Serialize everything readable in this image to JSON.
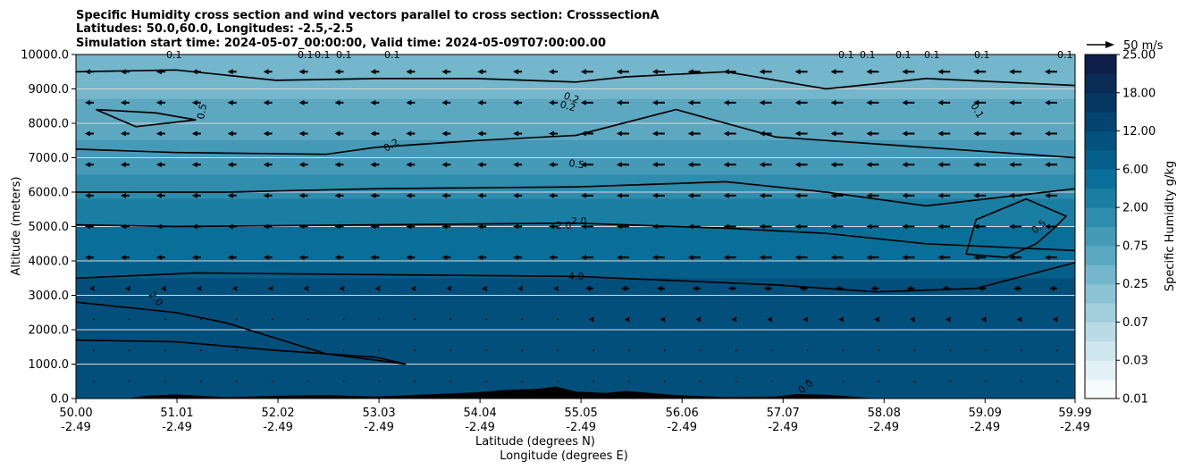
{
  "chart_data": {
    "type": "contourf_cross_section",
    "title_lines": [
      "Specific Humidity cross section and wind vectors parallel to cross section: CrosssectionA",
      "Latitudes: 50.0,60.0, Longitudes: -2.5,-2.5",
      "Simulation start time: 2024-05-07_00:00:00, Valid time: 2024-05-09T07:00:00.00"
    ],
    "ylabel": "Altitude (meters)",
    "xlabel_lines": [
      "Latitude (degrees N)",
      "Longitude (degrees E)"
    ],
    "ylim": [
      0,
      10000
    ],
    "y_ticks": [
      "0.0",
      "1000.0",
      "2000.0",
      "3000.0",
      "4000.0",
      "5000.0",
      "6000.0",
      "7000.0",
      "8000.0",
      "9000.0",
      "10000.0"
    ],
    "x_range": [
      50.0,
      59.99
    ],
    "x_ticks": [
      {
        "lat": "50.00",
        "lon": "-2.49"
      },
      {
        "lat": "51.01",
        "lon": "-2.49"
      },
      {
        "lat": "52.02",
        "lon": "-2.49"
      },
      {
        "lat": "53.03",
        "lon": "-2.49"
      },
      {
        "lat": "54.04",
        "lon": "-2.49"
      },
      {
        "lat": "55.05",
        "lon": "-2.49"
      },
      {
        "lat": "56.06",
        "lon": "-2.49"
      },
      {
        "lat": "57.07",
        "lon": "-2.49"
      },
      {
        "lat": "58.08",
        "lon": "-2.49"
      },
      {
        "lat": "59.09",
        "lon": "-2.49"
      },
      {
        "lat": "59.99",
        "lon": "-2.49"
      }
    ],
    "grid": "horizontal",
    "colorbar": {
      "label": "Specific Humidity g/kg",
      "levels": [
        "0.01",
        "0.03",
        "0.07",
        "0.25",
        "0.75",
        "2.00",
        "6.00",
        "12.00",
        "18.00",
        "25.00"
      ],
      "colors": [
        "#f7fbfd",
        "#e3f0f5",
        "#cfe6ee",
        "#b9dbe6",
        "#a3cfdd",
        "#8cc3d4",
        "#74b6cb",
        "#5ca8c1",
        "#449ab7",
        "#2e8cad",
        "#1a7ea3",
        "#0a6f98",
        "#04608b",
        "#02527d",
        "#034470",
        "#063763",
        "#0a2b56",
        "#0d1f49"
      ]
    },
    "vector_key": "50 m/s",
    "contour_labels": [
      "0.1",
      "0.1",
      "0.1",
      "0.1",
      "0.1",
      "0.1",
      "0.1",
      "0.1",
      "0.1",
      "0.1",
      "0.1",
      "0.5",
      "0.2",
      "0.2",
      "0.2",
      "0.5",
      "0.1",
      "2.0",
      "2.0",
      "2.0",
      "4.0",
      "0.5",
      "0.0"
    ],
    "fill_bands": [
      {
        "lo": 0,
        "hi": 4000,
        "color": "#04608b"
      },
      {
        "lo": 0,
        "hi": 3500,
        "color": "#034f7c"
      },
      {
        "lo": 4000,
        "hi": 5000,
        "color": "#0a6f98"
      },
      {
        "lo": 5000,
        "hi": 5800,
        "color": "#1a7ea3"
      },
      {
        "lo": 5800,
        "hi": 6500,
        "color": "#2e8cad"
      },
      {
        "lo": 6500,
        "hi": 7500,
        "color": "#449ab7"
      },
      {
        "lo": 7500,
        "hi": 8700,
        "color": "#5ca8c1"
      },
      {
        "lo": 8700,
        "hi": 10000,
        "color": "#74b6cb"
      }
    ],
    "contours": [
      {
        "label": "4.0",
        "x": [
          50.0,
          51.2,
          53.0,
          55.0,
          57.0,
          58.0,
          59.0,
          59.99
        ],
        "y": [
          3500,
          3650,
          3600,
          3550,
          3300,
          3100,
          3200,
          3950
        ]
      },
      {
        "label": "2.0",
        "x": [
          50.0,
          51.0,
          53.0,
          55.0,
          56.5,
          57.5,
          58.5,
          59.99
        ],
        "y": [
          5050,
          5000,
          5050,
          5100,
          4950,
          4800,
          4500,
          4300
        ]
      },
      {
        "label": "0.5",
        "x": [
          50.0,
          51.5,
          53.0,
          55.0,
          56.5,
          57.5,
          58.5,
          59.99
        ],
        "y": [
          6000,
          6000,
          6100,
          6150,
          6300,
          6000,
          5600,
          6100
        ]
      },
      {
        "label": "0.2",
        "x": [
          50.0,
          51.0,
          52.5,
          53.0,
          54.0,
          55.0,
          56.0,
          57.0,
          59.99
        ],
        "y": [
          7250,
          7150,
          7100,
          7300,
          7500,
          7650,
          8400,
          7600,
          7000
        ]
      },
      {
        "label": "0.1",
        "x": [
          50.0,
          51.0,
          52.0,
          53.0,
          54.0,
          55.0,
          55.5,
          56.5,
          57.5,
          58.5,
          59.99
        ],
        "y": [
          9500,
          9550,
          9250,
          9300,
          9300,
          9200,
          9350,
          9500,
          9000,
          9300,
          9100
        ]
      },
      {
        "label": "2.0",
        "x": [
          50.0,
          51.0,
          52.0,
          53.0,
          53.3,
          52.5,
          51.5,
          51.0,
          50.0
        ],
        "y": [
          1700,
          1650,
          1400,
          1200,
          1000,
          1300,
          2200,
          2500,
          2800
        ]
      },
      {
        "label": "0.5",
        "x": [
          50.2,
          50.8,
          51.2,
          50.6,
          50.2
        ],
        "y": [
          8400,
          8300,
          8100,
          7900,
          8400
        ]
      },
      {
        "label": "0.5",
        "x": [
          58.9,
          59.3,
          59.6,
          59.8,
          59.9,
          59.5,
          59.0,
          58.9
        ],
        "y": [
          4200,
          4100,
          4500,
          5000,
          5300,
          5800,
          5200,
          4200
        ]
      }
    ],
    "terrain_lat": [
      50.0,
      50.5,
      50.7,
      51.0,
      51.5,
      52.0,
      52.5,
      53.0,
      53.5,
      54.0,
      54.3,
      54.6,
      54.8,
      55.0,
      55.3,
      55.5,
      56.0,
      56.5,
      57.0,
      57.2,
      57.5,
      57.7,
      58.0,
      59.99
    ],
    "terrain_alt": [
      0,
      0,
      80,
      120,
      40,
      80,
      100,
      60,
      120,
      180,
      250,
      280,
      350,
      200,
      160,
      220,
      100,
      40,
      60,
      130,
      110,
      70,
      0,
      0
    ],
    "wind_cols": 28,
    "wind_rows": 11
  }
}
